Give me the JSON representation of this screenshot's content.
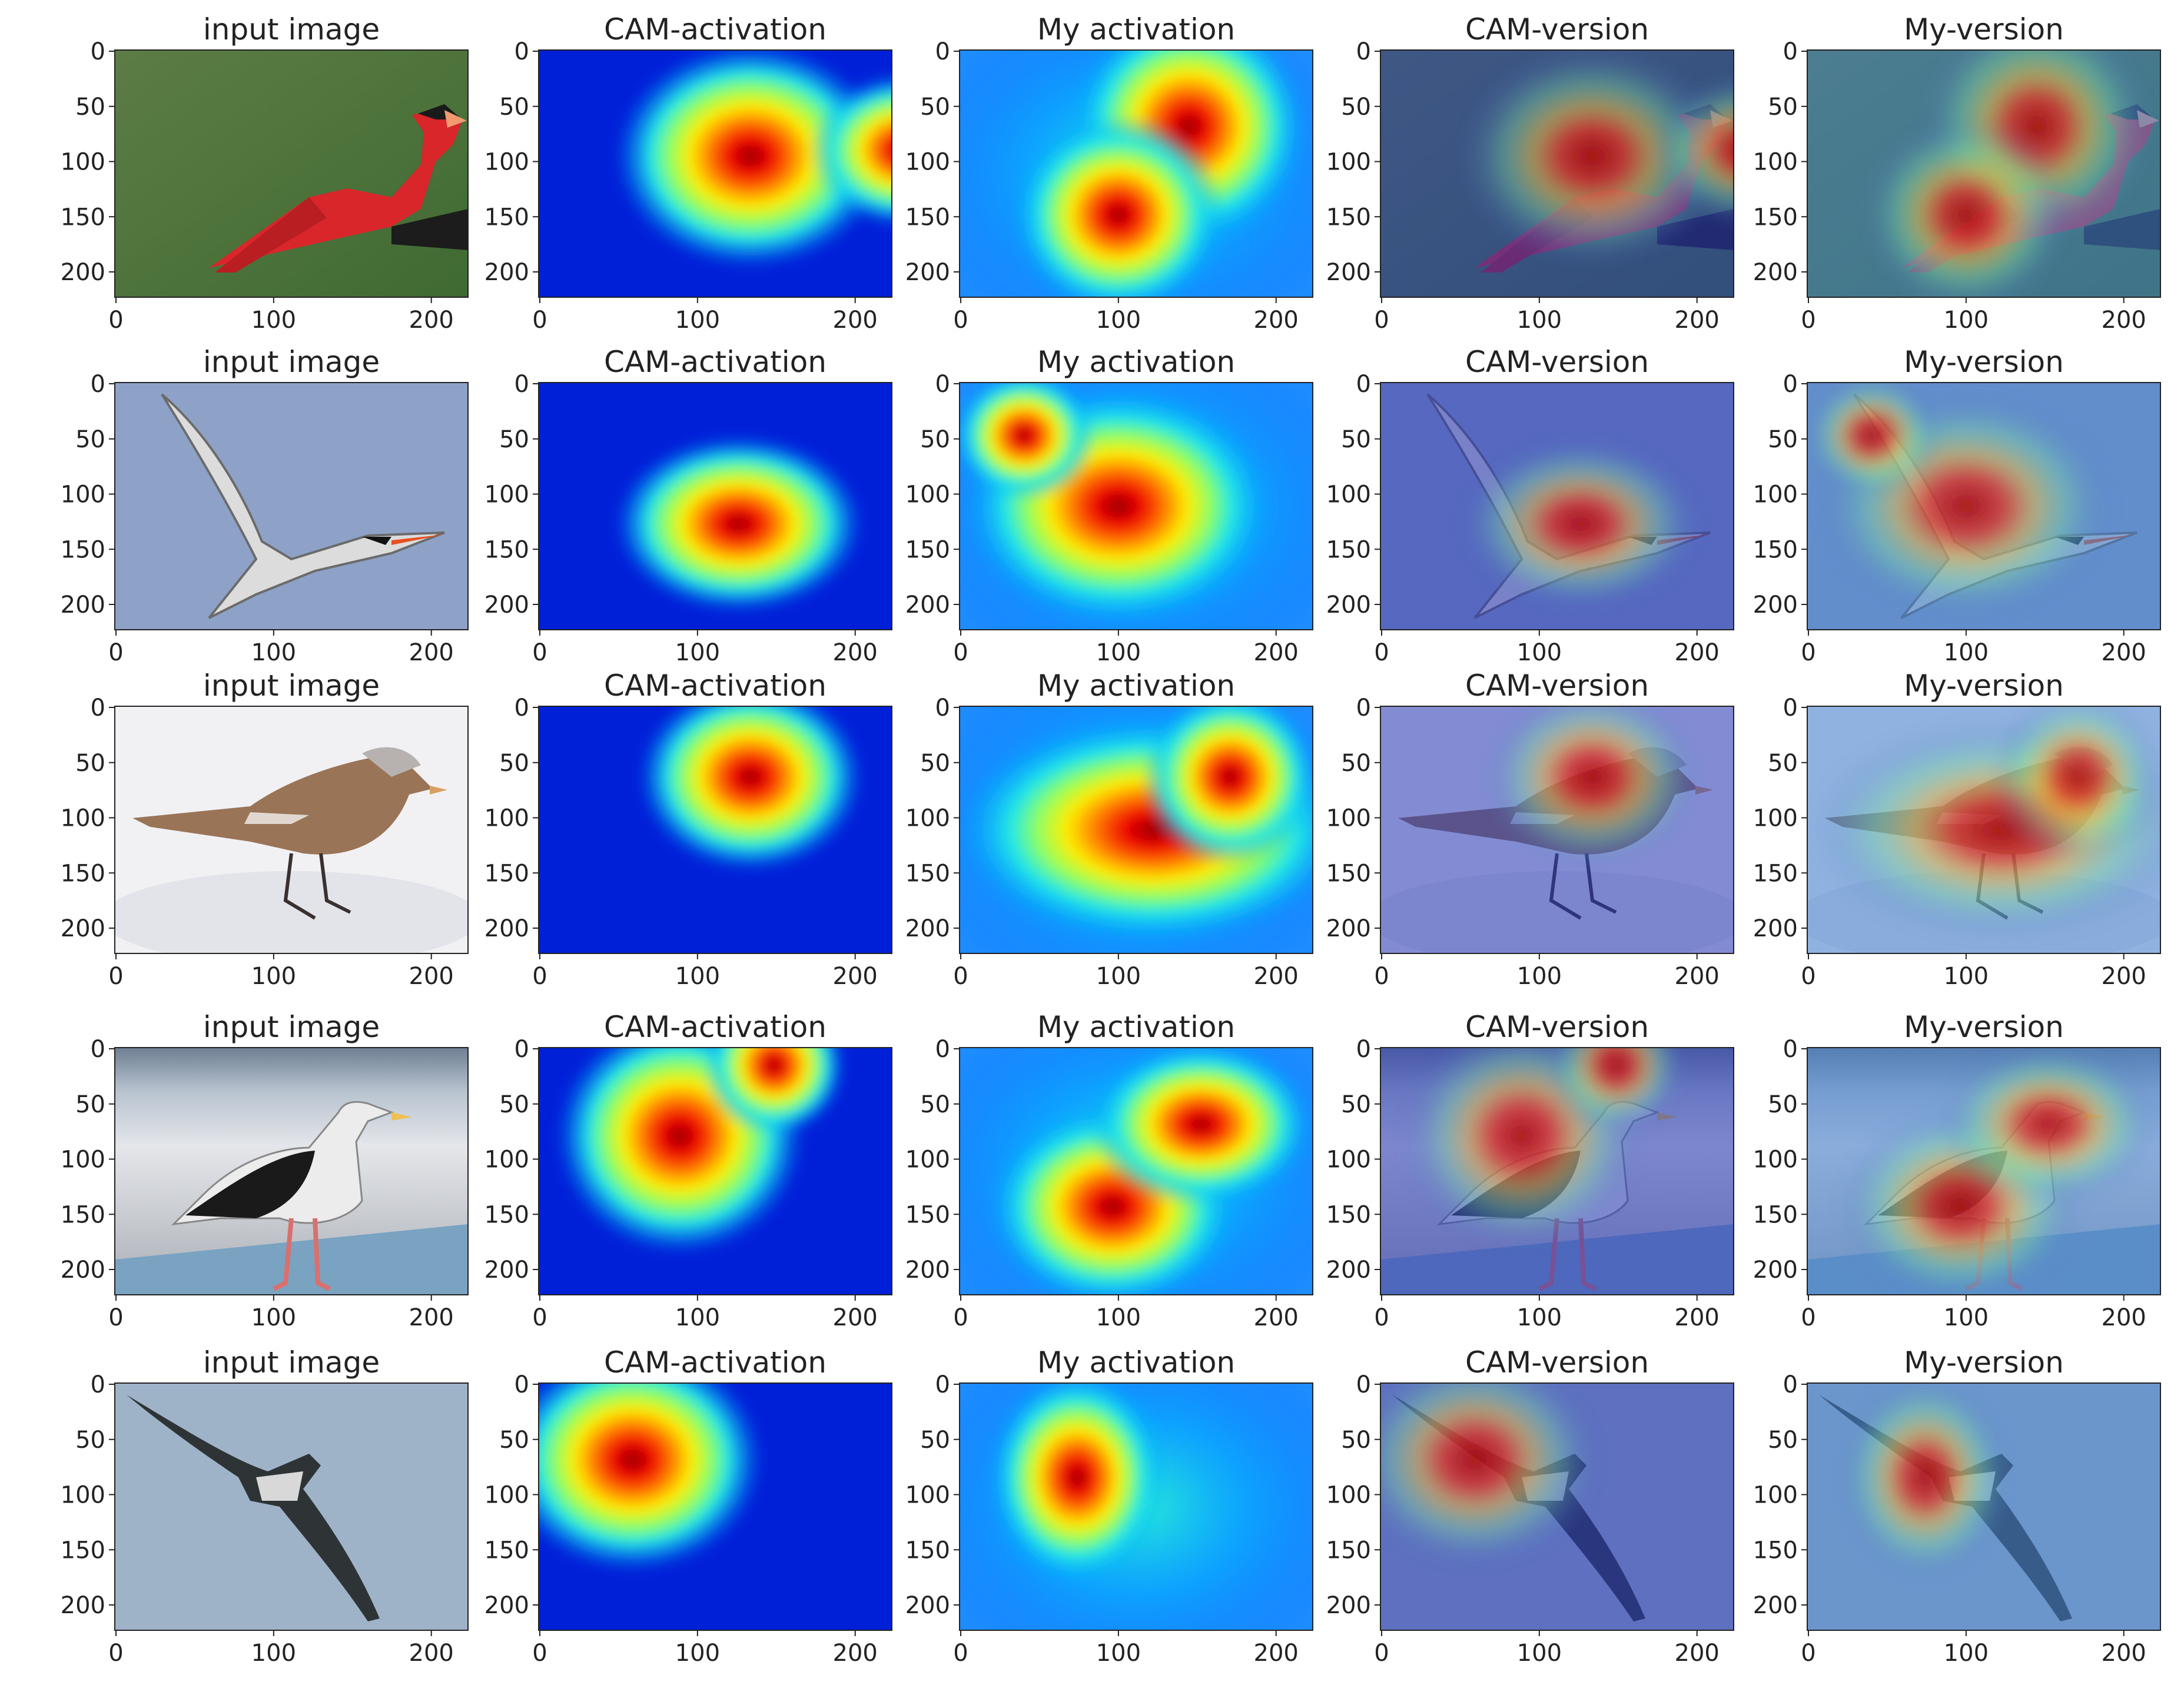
{
  "figure": {
    "rows": [
      {
        "subject": "cardinal",
        "panels": [
          {
            "title": "input image",
            "kind": "photo"
          },
          {
            "title": "CAM-activation",
            "kind": "cam"
          },
          {
            "title": "My activation",
            "kind": "mine"
          },
          {
            "title": "CAM-version",
            "kind": "cam-overlay"
          },
          {
            "title": "My-version",
            "kind": "mine-overlay"
          }
        ]
      },
      {
        "subject": "tern",
        "panels": [
          {
            "title": "input image",
            "kind": "photo"
          },
          {
            "title": "CAM-activation",
            "kind": "cam"
          },
          {
            "title": "My activation",
            "kind": "mine"
          },
          {
            "title": "CAM-version",
            "kind": "cam-overlay"
          },
          {
            "title": "My-version",
            "kind": "mine-overlay"
          }
        ]
      },
      {
        "subject": "finch",
        "panels": [
          {
            "title": "input image",
            "kind": "photo"
          },
          {
            "title": "CAM-activation",
            "kind": "cam"
          },
          {
            "title": "My activation",
            "kind": "mine"
          },
          {
            "title": "CAM-version",
            "kind": "cam-overlay"
          },
          {
            "title": "My-version",
            "kind": "mine-overlay"
          }
        ]
      },
      {
        "subject": "gull",
        "panels": [
          {
            "title": "input image",
            "kind": "photo"
          },
          {
            "title": "CAM-activation",
            "kind": "cam"
          },
          {
            "title": "My activation",
            "kind": "mine"
          },
          {
            "title": "CAM-version",
            "kind": "cam-overlay"
          },
          {
            "title": "My-version",
            "kind": "mine-overlay"
          }
        ]
      },
      {
        "subject": "soaring-bird",
        "panels": [
          {
            "title": "input image",
            "kind": "photo"
          },
          {
            "title": "CAM-activation",
            "kind": "cam"
          },
          {
            "title": "My activation",
            "kind": "mine"
          },
          {
            "title": "CAM-version",
            "kind": "cam-overlay"
          },
          {
            "title": "My-version",
            "kind": "mine-overlay"
          }
        ]
      }
    ],
    "y_ticks": [
      "0",
      "50",
      "100",
      "150",
      "200"
    ],
    "x_ticks": [
      "0",
      "100",
      "200"
    ],
    "colormap": [
      "#00007f",
      "#0000ff",
      "#00aaff",
      "#2bffd0",
      "#aaff55",
      "#ffff00",
      "#ff8800",
      "#ff0000",
      "#7f0000"
    ],
    "colors": {
      "cardinal_background": "#4f7a3c",
      "cardinal_bird": "#d8262a",
      "tern_sky": "#8ea2c8",
      "finch_snow": "#f1f1f4",
      "finch_bird": "#9a7456",
      "gull_sand": "#cfd3da",
      "gull_sea": "#7c8ea4",
      "soaring_sky": "#9fb3c8"
    }
  }
}
